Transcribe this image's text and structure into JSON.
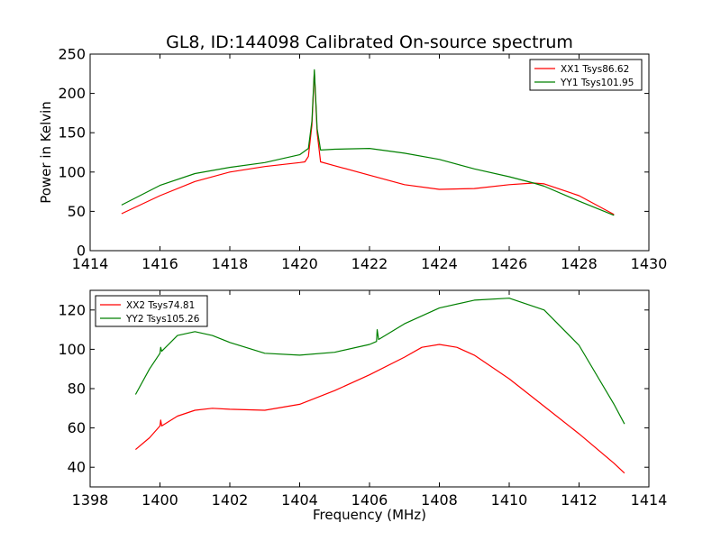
{
  "chart_data": [
    {
      "type": "line",
      "title": "GL8, ID:144098 Calibrated On-source spectrum",
      "xlabel": "",
      "ylabel": "Power in Kelvin",
      "xlim": [
        1414,
        1430
      ],
      "ylim": [
        0,
        250
      ],
      "xticks": [
        1414,
        1416,
        1418,
        1420,
        1422,
        1424,
        1426,
        1428,
        1430
      ],
      "yticks": [
        0,
        50,
        100,
        150,
        200,
        250
      ],
      "legend_position": "top-right",
      "series": [
        {
          "name": "XX1 Tsys86.62",
          "color": "#ff0000",
          "points": [
            [
              1414.9,
              47
            ],
            [
              1416,
              70
            ],
            [
              1417,
              88
            ],
            [
              1418,
              100
            ],
            [
              1419,
              107
            ],
            [
              1420,
              112
            ],
            [
              1420.15,
              113
            ],
            [
              1420.25,
              120
            ],
            [
              1420.35,
              160
            ],
            [
              1420.42,
              228
            ],
            [
              1420.5,
              150
            ],
            [
              1420.6,
              113
            ],
            [
              1421,
              108
            ],
            [
              1422,
              96
            ],
            [
              1423,
              84
            ],
            [
              1424,
              78
            ],
            [
              1425,
              79
            ],
            [
              1426,
              84
            ],
            [
              1426.7,
              86
            ],
            [
              1427,
              85
            ],
            [
              1428,
              70
            ],
            [
              1429,
              46
            ]
          ]
        },
        {
          "name": "YY1 Tsys101.95",
          "color": "#008000",
          "points": [
            [
              1414.9,
              58
            ],
            [
              1416,
              83
            ],
            [
              1417,
              98
            ],
            [
              1418,
              106
            ],
            [
              1419,
              112
            ],
            [
              1420,
              122
            ],
            [
              1420.25,
              130
            ],
            [
              1420.35,
              165
            ],
            [
              1420.42,
              230
            ],
            [
              1420.5,
              155
            ],
            [
              1420.6,
              128
            ],
            [
              1421,
              129
            ],
            [
              1422,
              130
            ],
            [
              1423,
              124
            ],
            [
              1424,
              116
            ],
            [
              1425,
              104
            ],
            [
              1426,
              94
            ],
            [
              1426.7,
              86
            ],
            [
              1427,
              82
            ],
            [
              1428,
              63
            ],
            [
              1429,
              45
            ]
          ]
        }
      ]
    },
    {
      "type": "line",
      "title": "",
      "xlabel": "Frequency (MHz)",
      "ylabel": "",
      "xlim": [
        1398,
        1414
      ],
      "ylim": [
        30,
        130
      ],
      "xticks": [
        1398,
        1400,
        1402,
        1404,
        1406,
        1408,
        1410,
        1412,
        1414
      ],
      "yticks": [
        40,
        60,
        80,
        100,
        120
      ],
      "legend_position": "top-left",
      "series": [
        {
          "name": "XX2 Tsys74.81",
          "color": "#ff0000",
          "points": [
            [
              1399.3,
              49
            ],
            [
              1399.7,
              55
            ],
            [
              1400,
              61
            ],
            [
              1400.02,
              64
            ],
            [
              1400.05,
              61
            ],
            [
              1400.5,
              66
            ],
            [
              1401,
              69
            ],
            [
              1401.5,
              70
            ],
            [
              1402,
              69.5
            ],
            [
              1403,
              69
            ],
            [
              1404,
              72
            ],
            [
              1405,
              79
            ],
            [
              1406,
              87
            ],
            [
              1407,
              96
            ],
            [
              1407.5,
              101
            ],
            [
              1408,
              102.5
            ],
            [
              1408.5,
              101
            ],
            [
              1409,
              97
            ],
            [
              1410,
              85
            ],
            [
              1411,
              71
            ],
            [
              1412,
              57
            ],
            [
              1413,
              42
            ],
            [
              1413.3,
              37
            ]
          ]
        },
        {
          "name": "YY2 Tsys105.26",
          "color": "#008000",
          "points": [
            [
              1399.3,
              77
            ],
            [
              1399.7,
              90
            ],
            [
              1400,
              98
            ],
            [
              1400.02,
              101
            ],
            [
              1400.05,
              99
            ],
            [
              1400.5,
              107
            ],
            [
              1401,
              109
            ],
            [
              1401.5,
              107
            ],
            [
              1402,
              103.5
            ],
            [
              1403,
              98
            ],
            [
              1404,
              97
            ],
            [
              1405,
              98.5
            ],
            [
              1406,
              102.5
            ],
            [
              1406.2,
              104
            ],
            [
              1406.22,
              110
            ],
            [
              1406.26,
              105
            ],
            [
              1407,
              113
            ],
            [
              1408,
              121
            ],
            [
              1409,
              125
            ],
            [
              1410,
              126
            ],
            [
              1411,
              120
            ],
            [
              1412,
              102
            ],
            [
              1413,
              72
            ],
            [
              1413.3,
              62
            ]
          ]
        }
      ]
    }
  ]
}
